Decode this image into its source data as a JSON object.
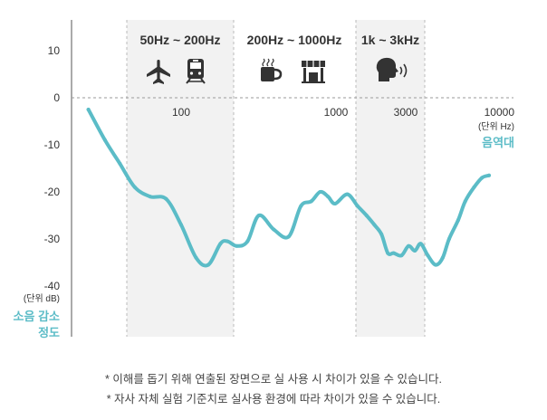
{
  "colors": {
    "accent": "#5bbcc7",
    "band": "#f2f2f2",
    "axis": "#555555",
    "text": "#333333",
    "icon": "#333333"
  },
  "bands": [
    {
      "label": "50Hz ~ 200Hz",
      "icons": [
        "airplane-icon",
        "train-icon"
      ]
    },
    {
      "label": "200Hz ~ 1000Hz",
      "icons": [
        "coffee-cup-icon",
        "storefront-icon"
      ]
    },
    {
      "label": "1k ~ 3kHz",
      "icons": [
        "speaking-person-icon"
      ]
    }
  ],
  "chart_data": {
    "type": "line",
    "y_ticks": [
      10,
      0,
      -10,
      -20,
      -30,
      -40
    ],
    "y_unit": "(단위 dB)",
    "y_title": [
      "소음 감소",
      "정도"
    ],
    "x_ticks": [
      "100",
      "1000",
      "3000",
      "10000"
    ],
    "x_unit": "(단위 Hz)",
    "x_title": "음역대",
    "ylim": [
      -50,
      15
    ],
    "grid": false,
    "series": [
      {
        "x": [
          25,
          32,
          40,
          50,
          63,
          80,
          100,
          125,
          150,
          180,
          200,
          230,
          270,
          320,
          400,
          500,
          600,
          700,
          800,
          900,
          1000,
          1200,
          1400,
          1600,
          1800,
          2000,
          2200,
          2400,
          2700,
          3000,
          3300,
          3600,
          4000,
          4500,
          5000,
          5500,
          6300,
          7000,
          8000,
          9000,
          10000
        ],
        "y": [
          -2.5,
          -9,
          -14,
          -19,
          -21,
          -21.5,
          -27,
          -34,
          -35.5,
          -31,
          -30.5,
          -31.5,
          -30.5,
          -25,
          -28,
          -29.5,
          -23,
          -22,
          -20,
          -21,
          -22.5,
          -20.5,
          -23,
          -25,
          -27,
          -29,
          -33,
          -33,
          -33.5,
          -31.5,
          -32.5,
          -31,
          -33.5,
          -35.5,
          -34,
          -30,
          -26,
          -22,
          -19,
          -17,
          -16.5
        ]
      }
    ]
  },
  "notes": [
    "* 이해를 돕기 위해 연출된 장면으로 실 사용 시 차이가 있을 수 있습니다.",
    "* 자사 자체 실험 기준치로 실사용 환경에 따라 차이가 있을 수 있습니다."
  ]
}
